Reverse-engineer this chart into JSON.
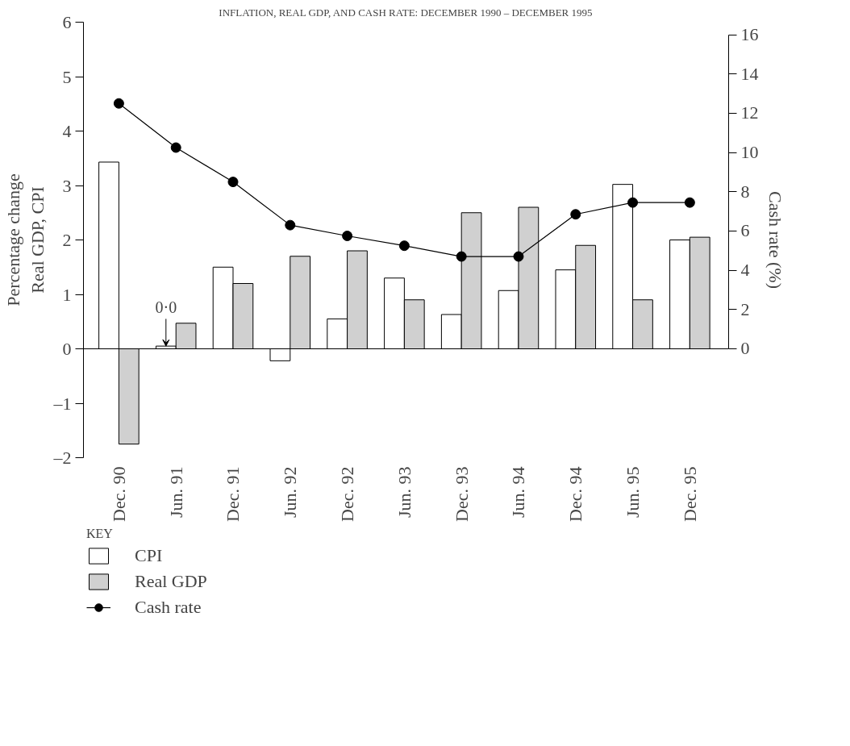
{
  "chart_data": {
    "type": "bar",
    "title": "INFLATION, REAL GDP, AND CASH RATE: DECEMBER 1990 – DECEMBER 1995",
    "categories": [
      "Dec. 90",
      "Jun. 91",
      "Dec. 91",
      "Jun. 92",
      "Dec. 92",
      "Jun. 93",
      "Dec. 93",
      "Jun. 94",
      "Dec. 94",
      "Jun. 95",
      "Dec. 95"
    ],
    "series": [
      {
        "name": "CPI",
        "color": "#ffffff",
        "values": [
          3.43,
          0.05,
          1.5,
          -0.22,
          0.55,
          1.3,
          0.63,
          1.07,
          1.45,
          3.02,
          2.0
        ]
      },
      {
        "name": "Real GDP",
        "color": "#d0d0d0",
        "values": [
          -1.75,
          0.47,
          1.2,
          1.7,
          1.8,
          0.9,
          2.5,
          2.6,
          1.9,
          0.9,
          2.05
        ]
      },
      {
        "name": "Cash rate",
        "type": "line",
        "axis": "y2",
        "color": "#000000",
        "marker": "circle",
        "values": [
          12.5,
          10.25,
          8.5,
          6.3,
          5.75,
          5.25,
          4.7,
          4.7,
          6.85,
          7.45,
          7.45
        ]
      }
    ],
    "ylabel": "Percentage change\nReal GDP, CPI",
    "y2label": "Cash rate (%)",
    "legend_title": "KEY",
    "legend": "bottom left",
    "ylim": [
      -2,
      6
    ],
    "yticks": [
      {
        "value": -2,
        "label": "–2"
      },
      {
        "value": -1,
        "label": "–1"
      },
      0,
      1,
      2,
      3,
      4,
      5,
      6
    ],
    "y2lim": [
      -5.55,
      16.64
    ],
    "y2ticks": [
      0,
      2,
      4,
      6,
      8,
      10,
      12,
      14,
      16
    ],
    "ref_lines": [
      {
        "axis": "y",
        "value": 0,
        "color": "#000000"
      }
    ],
    "annotations": [
      {
        "text": "0·0",
        "x": "Jun. 91",
        "y": 0.05
      }
    ],
    "grid": false
  }
}
